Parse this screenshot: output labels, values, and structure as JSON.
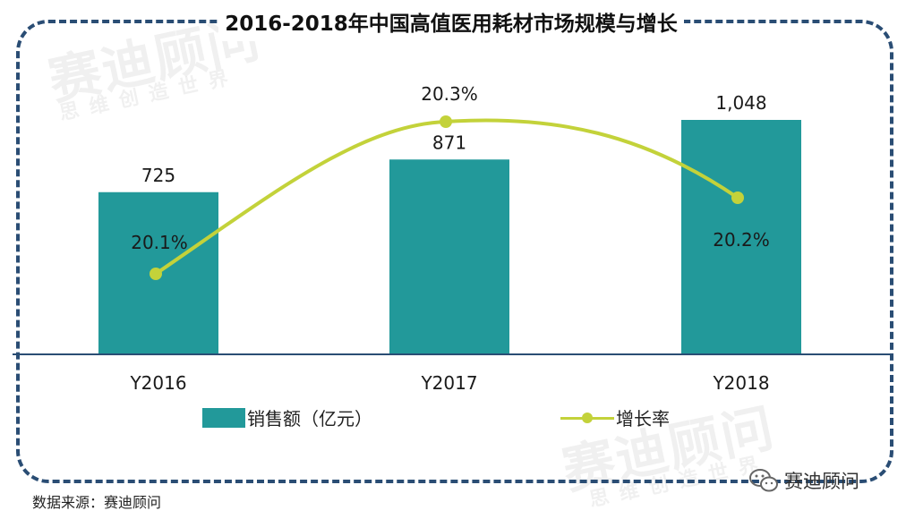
{
  "title": "2016-2018年中国高值医用耗材市场规模与增长",
  "source": "数据来源：赛迪顾问",
  "brand": "赛迪顾问",
  "watermark_main": "赛迪顾问",
  "watermark_sub": "思维创造世界",
  "chart_data": {
    "type": "bar",
    "categories": [
      "Y2016",
      "Y2017",
      "Y2018"
    ],
    "series": [
      {
        "name": "销售额（亿元）",
        "type": "bar",
        "values": [
          725,
          871,
          1048
        ],
        "labels": [
          "725",
          "871",
          "1,048"
        ],
        "color": "#22999a"
      },
      {
        "name": "增长率",
        "type": "line",
        "values": [
          20.1,
          20.3,
          20.2
        ],
        "labels": [
          "20.1%",
          "20.3%",
          "20.2%"
        ],
        "color": "#c3d23a",
        "smooth": true
      }
    ],
    "grid": false,
    "legend": "bottom"
  }
}
